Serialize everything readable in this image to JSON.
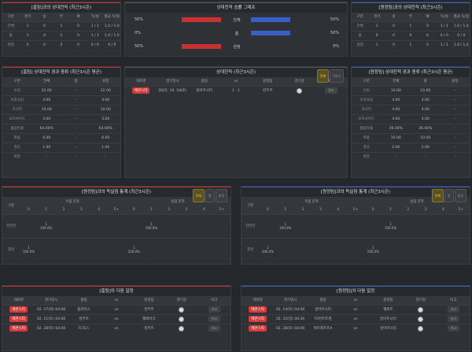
{
  "home_record": {
    "title": "[홈팀]과의 상대전적 (최근3시즌)",
    "headers": [
      "구분",
      "경기",
      "승",
      "무",
      "패",
      "득/실",
      "평균 득/실"
    ],
    "rows": [
      [
        "전체",
        "1",
        "0",
        "1",
        "0",
        "1 / 1",
        "1.0 / 1.0"
      ],
      [
        "홈",
        "1",
        "0",
        "1",
        "0",
        "1 / 1",
        "1.0 / 1.0"
      ],
      [
        "원정",
        "0",
        "0",
        "0",
        "0",
        "0 / 0",
        "0 / 0"
      ]
    ]
  },
  "graph": {
    "title": "상대전적 승률 그래프",
    "rows": [
      {
        "left": "50%",
        "label": "전체",
        "right": "50%",
        "lv": 0.5,
        "rv": 0.5
      },
      {
        "left": "0%",
        "label": "홈",
        "right": "50%",
        "lv": 0,
        "rv": 0.5
      },
      {
        "left": "50%",
        "label": "원정",
        "right": "0%",
        "lv": 0.5,
        "rv": 0
      }
    ]
  },
  "away_record": {
    "title": "[원정팀]과의 상대전적 (최근3시즌)",
    "headers": [
      "구분",
      "경기",
      "승",
      "무",
      "패",
      "득/실",
      "평균 득/실"
    ],
    "rows": [
      [
        "전체",
        "1",
        "0",
        "1",
        "0",
        "1 / 1",
        "1.0 / 1.0"
      ],
      [
        "홈",
        "0",
        "0",
        "0",
        "0",
        "0 / 0",
        "0 / 0"
      ],
      [
        "원정",
        "1",
        "0",
        "1",
        "0",
        "1 / 1",
        "1.0 / 1.0"
      ]
    ]
  },
  "home_stats": {
    "title": "[홈팀] 상대전적 경과 종류 (최근3시즌 평균)",
    "headers": [
      "구분",
      "전체",
      "홈",
      "원정"
    ],
    "rows": [
      [
        "슈팅",
        "22.00",
        "-",
        "22.00"
      ],
      [
        "유효슈팅",
        "4.00",
        "-",
        "4.00"
      ],
      [
        "코너킥",
        "10.00",
        "-",
        "10.00"
      ],
      [
        "오프사이드",
        "3.00",
        "-",
        "3.00"
      ],
      [
        "볼점유율",
        "64.00%",
        "-",
        "64.00%"
      ],
      [
        "파울",
        "6.00",
        "-",
        "6.00"
      ],
      [
        "경고",
        "1.00",
        "-",
        "1.00"
      ],
      [
        "퇴장",
        "-",
        "-",
        "-"
      ]
    ]
  },
  "h2h": {
    "title": "상대전적 (최근3시즌)",
    "tabs": [
      "전체",
      "5경기"
    ],
    "headers": [
      "대회명",
      "경기일시",
      "홈팀",
      "vs",
      "원정팀",
      "경기장",
      "비고"
    ],
    "rows": [
      {
        "league": "에콘스타",
        "date": "2025. 10. 18(토)",
        "home": "알마르시티",
        "score": "1 - 1",
        "away": "킹부르",
        "note": "결과"
      }
    ]
  },
  "away_stats": {
    "title": "[원정팀] 상대전적 경과 종류 (최근3시즌 평균)",
    "headers": [
      "구분",
      "전체",
      "홈",
      "원정"
    ],
    "rows": [
      [
        "슈팅",
        "10.00",
        "10.00",
        "-"
      ],
      [
        "유효슈팅",
        "4.00",
        "4.00",
        "-"
      ],
      [
        "코너킥",
        "4.00",
        "4.00",
        "-"
      ],
      [
        "오프사이드",
        "4.00",
        "4.00",
        "-"
      ],
      [
        "볼점유율",
        "36.00%",
        "36.00%",
        "-"
      ],
      [
        "파울",
        "10.00",
        "10.00",
        "-"
      ],
      [
        "경고",
        "2.00",
        "2.00",
        "-"
      ],
      [
        "퇴장",
        "-",
        "-",
        "-"
      ]
    ]
  },
  "home_dist": {
    "title": "[원정팀]과의 득실점 통계 (최근3시즌)",
    "tabs": [
      "전체",
      "홈",
      "원정"
    ],
    "group1": "득점 분포",
    "group2": "실점 분포",
    "cols": [
      "0",
      "1",
      "2",
      "3",
      "4",
      "5+"
    ],
    "rows": [
      {
        "label": "전반전",
        "g": [
          "",
          "1\n100.0%",
          "",
          "",
          "",
          ""
        ],
        "c": [
          "",
          "1\n100.0%",
          "",
          "",
          "",
          ""
        ]
      },
      {
        "label": "후반",
        "g": [
          "1\n100.0%",
          "",
          "",
          "",
          "",
          ""
        ],
        "c": [
          "1\n100.0%",
          "",
          "",
          "",
          "",
          ""
        ]
      }
    ]
  },
  "away_dist": {
    "title": "[원정팀]과의 득실점 통계 (최근3시즌)",
    "tabs": [
      "전체",
      "홈",
      "원정"
    ],
    "group1": "득점 분포",
    "group2": "실점 분포",
    "cols": [
      "0",
      "1",
      "2",
      "3",
      "4",
      "5+"
    ],
    "rows": [
      {
        "label": "전반전",
        "g": [
          "",
          "1\n100.0%",
          "",
          "",
          "",
          ""
        ],
        "c": [
          "",
          "1\n100.0%",
          "",
          "",
          "",
          ""
        ]
      },
      {
        "label": "후반",
        "g": [
          "1\n100.0%",
          "",
          "",
          "",
          "",
          ""
        ],
        "c": [
          "1\n100.0%",
          "",
          "",
          "",
          "",
          ""
        ]
      }
    ]
  },
  "home_next": {
    "title": "[홈팀]의 다음 일정",
    "headers": [
      "대회명",
      "경기일시",
      "홈팀",
      "vs",
      "원정팀",
      "경기장",
      "비고"
    ],
    "rows": [
      {
        "league": "에콘스타",
        "date": "02. 17(화) 04:00",
        "home": "플라먹스",
        "away": "킹부르",
        "note": "비교"
      },
      {
        "league": "에콘스타",
        "date": "02. 21(토) 04:00",
        "home": "킹부르",
        "away": "텔레이크",
        "note": "비교"
      },
      {
        "league": "에콘스타",
        "date": "02. 28(토) 04:00",
        "home": "FC포스",
        "away": "킹부르",
        "note": "비교"
      }
    ]
  },
  "away_next": {
    "title": "[원정팀]의 다음 일정",
    "headers": [
      "대회명",
      "경기일시",
      "홈팀",
      "vs",
      "원정팀",
      "경기장",
      "비고"
    ],
    "rows": [
      {
        "league": "에콘스타",
        "date": "02. 14(토) 04:00",
        "home": "알마르시티",
        "away": "헬로트",
        "note": "비교"
      },
      {
        "league": "에콘스타",
        "date": "02. 22(일) 00:30",
        "home": "FS컨트트랜",
        "away": "알마르시티",
        "note": "비교"
      },
      {
        "league": "에콘스타",
        "date": "02. 28(토) 04:00",
        "home": "위트레프트A",
        "away": "알마르시티",
        "note": "비교"
      }
    ]
  },
  "vs_label": "vs",
  "colors": {
    "red": "#c83232",
    "blue": "#3a5ec8",
    "accent": "#f5d04a"
  }
}
